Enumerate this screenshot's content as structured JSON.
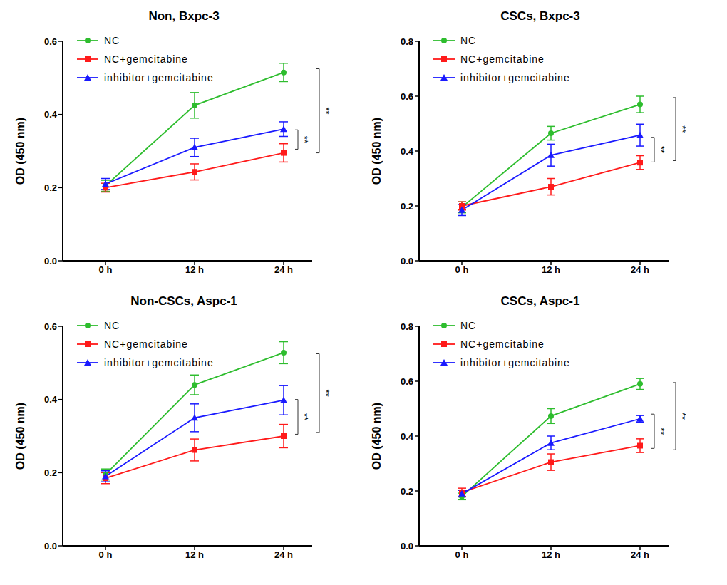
{
  "chart_data": [
    {
      "type": "line",
      "title": "Non, Bxpc-3",
      "y_label": "OD (450 nm)",
      "categories": [
        "0 h",
        "12 h",
        "24 h"
      ],
      "ylim": [
        0,
        0.6
      ],
      "yticks": [
        {
          "value": 0,
          "label": "0.0"
        },
        {
          "value": 0.2,
          "label": "0.2"
        },
        {
          "value": 0.4,
          "label": "0.4"
        },
        {
          "value": 0.6,
          "label": "0.6"
        }
      ],
      "grid": false,
      "legend": "upper left",
      "series": [
        {
          "name": "NC",
          "color": "#2ebd2e",
          "marker": "circle",
          "values": [
            0.205,
            0.425,
            0.515
          ],
          "errors": [
            0.015,
            0.035,
            0.025
          ]
        },
        {
          "name": "NC+gemcitabine",
          "color": "#ff1a1a",
          "marker": "square",
          "values": [
            0.2,
            0.243,
            0.295
          ],
          "errors": [
            0.012,
            0.022,
            0.025
          ]
        },
        {
          "name": "inhibitor+gemcitabine",
          "color": "#1a1aff",
          "marker": "triangle",
          "values": [
            0.21,
            0.31,
            0.36
          ],
          "errors": [
            0.015,
            0.025,
            0.02
          ]
        }
      ],
      "annotations": [
        {
          "text": "**",
          "x": "24 h",
          "y": [
            0.305,
            0.358
          ]
        },
        {
          "text": "**",
          "x": "24 h",
          "y": [
            0.295,
            0.525
          ]
        }
      ]
    },
    {
      "type": "line",
      "title": "CSCs, Bxpc-3",
      "y_label": "OD (450 nm)",
      "categories": [
        "0 h",
        "12 h",
        "24 h"
      ],
      "ylim": [
        0,
        0.8
      ],
      "yticks": [
        {
          "value": 0,
          "label": "0.0"
        },
        {
          "value": 0.2,
          "label": "0.2"
        },
        {
          "value": 0.4,
          "label": "0.4"
        },
        {
          "value": 0.6,
          "label": "0.6"
        },
        {
          "value": 0.8,
          "label": "0.8"
        }
      ],
      "grid": false,
      "legend": "upper left",
      "series": [
        {
          "name": "NC",
          "color": "#2ebd2e",
          "marker": "circle",
          "values": [
            0.195,
            0.465,
            0.57
          ],
          "errors": [
            0.02,
            0.025,
            0.03
          ]
        },
        {
          "name": "NC+gemcitabine",
          "color": "#ff1a1a",
          "marker": "square",
          "values": [
            0.2,
            0.27,
            0.358
          ],
          "errors": [
            0.015,
            0.03,
            0.025
          ]
        },
        {
          "name": "inhibitor+gemcitabine",
          "color": "#1a1aff",
          "marker": "triangle",
          "values": [
            0.185,
            0.385,
            0.458
          ],
          "errors": [
            0.02,
            0.04,
            0.04
          ]
        }
      ],
      "annotations": [
        {
          "text": "**",
          "x": "24 h",
          "y": [
            0.36,
            0.45
          ]
        },
        {
          "text": "**",
          "x": "24 h",
          "y": [
            0.365,
            0.595
          ]
        }
      ]
    },
    {
      "type": "line",
      "title": "Non-CSCs, Aspc-1",
      "y_label": "OD (450 nm)",
      "categories": [
        "0 h",
        "12 h",
        "24 h"
      ],
      "ylim": [
        0,
        0.6
      ],
      "yticks": [
        {
          "value": 0,
          "label": "0.0"
        },
        {
          "value": 0.2,
          "label": "0.2"
        },
        {
          "value": 0.4,
          "label": "0.4"
        },
        {
          "value": 0.6,
          "label": "0.6"
        }
      ],
      "grid": false,
      "legend": "upper left",
      "series": [
        {
          "name": "NC",
          "color": "#2ebd2e",
          "marker": "circle",
          "values": [
            0.195,
            0.44,
            0.528
          ],
          "errors": [
            0.015,
            0.027,
            0.03
          ]
        },
        {
          "name": "NC+gemcitabine",
          "color": "#ff1a1a",
          "marker": "square",
          "values": [
            0.185,
            0.262,
            0.3
          ],
          "errors": [
            0.015,
            0.03,
            0.032
          ]
        },
        {
          "name": "inhibitor+gemcitabine",
          "color": "#1a1aff",
          "marker": "triangle",
          "values": [
            0.19,
            0.35,
            0.398
          ],
          "errors": [
            0.015,
            0.038,
            0.04
          ]
        }
      ],
      "annotations": [
        {
          "text": "**",
          "x": "24 h",
          "y": [
            0.305,
            0.4
          ]
        },
        {
          "text": "**",
          "x": "24 h",
          "y": [
            0.31,
            0.525
          ]
        }
      ]
    },
    {
      "type": "line",
      "title": "CSCs, Aspc-1",
      "y_label": "OD (450 nm)",
      "categories": [
        "0 h",
        "12 h",
        "24 h"
      ],
      "ylim": [
        0,
        0.8
      ],
      "yticks": [
        {
          "value": 0,
          "label": "0.0"
        },
        {
          "value": 0.2,
          "label": "0.2"
        },
        {
          "value": 0.4,
          "label": "0.4"
        },
        {
          "value": 0.6,
          "label": "0.6"
        },
        {
          "value": 0.8,
          "label": "0.8"
        }
      ],
      "grid": false,
      "legend": "upper left",
      "series": [
        {
          "name": "NC",
          "color": "#2ebd2e",
          "marker": "circle",
          "values": [
            0.18,
            0.473,
            0.59
          ],
          "errors": [
            0.012,
            0.027,
            0.02
          ]
        },
        {
          "name": "NC+gemcitabine",
          "color": "#ff1a1a",
          "marker": "square",
          "values": [
            0.195,
            0.305,
            0.365
          ],
          "errors": [
            0.015,
            0.03,
            0.025
          ]
        },
        {
          "name": "inhibitor+gemcitabine",
          "color": "#1a1aff",
          "marker": "triangle",
          "values": [
            0.19,
            0.375,
            0.463
          ],
          "errors": [
            0.012,
            0.025,
            0.012
          ]
        }
      ],
      "annotations": [
        {
          "text": "**",
          "x": "24 h",
          "y": [
            0.355,
            0.48
          ]
        },
        {
          "text": "**",
          "x": "24 h",
          "y": [
            0.35,
            0.595
          ]
        }
      ]
    }
  ]
}
